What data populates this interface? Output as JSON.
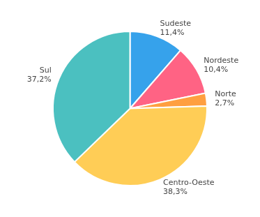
{
  "chart_data": {
    "type": "pie",
    "categories": [
      "Sudeste",
      "Nordeste",
      "Norte",
      "Centro-Oeste",
      "Sul"
    ],
    "values": [
      11.4,
      10.4,
      2.7,
      38.3,
      37.2
    ],
    "value_labels": [
      "11,4%",
      "10,4%",
      "2,7%",
      "38,3%",
      "37,2%"
    ],
    "data_labels": true
  }
}
